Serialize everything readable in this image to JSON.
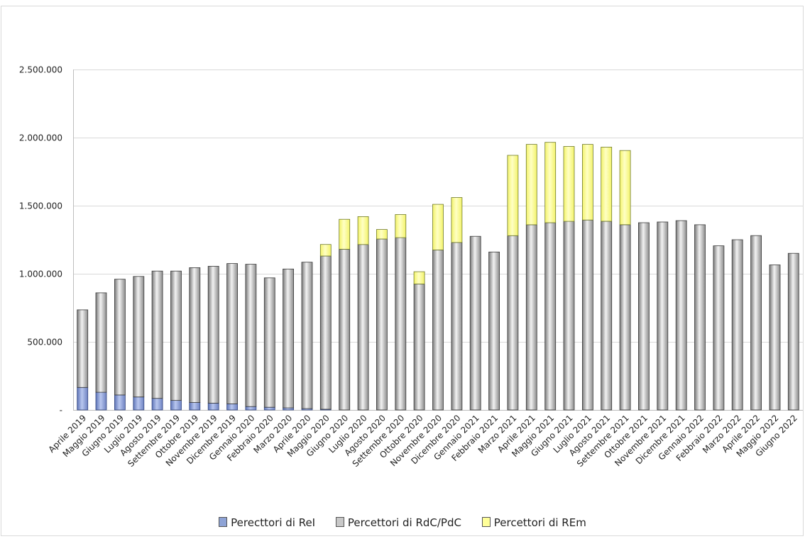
{
  "chart_data": {
    "type": "bar",
    "stacked": true,
    "categories": [
      "Aprile 2019",
      "Maggio 2019",
      "Giugno 2019",
      "Luglio 2019",
      "Agosto 2019",
      "Settembre 2019",
      "Ottobre 2019",
      "Novembre 2019",
      "Dicembre 2019",
      "Gennaio 2020",
      "Febbraio 2020",
      "Marzo 2020",
      "Aprile 2020",
      "Maggio 2020",
      "Giugno 2020",
      "Luglio 2020",
      "Agosto 2020",
      "Settembre 2020",
      "Ottobre 2020",
      "Novembre 2020",
      "Dicembre 2020",
      "Gennaio 2021",
      "Febbraio 2021",
      "Marzo 2021",
      "Aprile  2021",
      "Maggio 2021",
      "Giugno 2021",
      "Luglio 2021",
      "Agosto 2021",
      "Settembre 2021",
      "Ottobre 2021",
      "Novembre 2021",
      "Dicembre 2021",
      "Gennaio 2022",
      "Febbraio 2022",
      "Marzo 2022",
      "Aprile 2022",
      "Maggio 2022",
      "Giugno 2022"
    ],
    "series": [
      {
        "name": "Perecttori di ReI",
        "color": "#8ea3d6",
        "values": [
          165000,
          130000,
          110000,
          95000,
          85000,
          70000,
          55000,
          50000,
          45000,
          25000,
          20000,
          15000,
          10000,
          5000,
          0,
          0,
          0,
          0,
          0,
          0,
          0,
          0,
          0,
          0,
          0,
          0,
          0,
          0,
          0,
          0,
          0,
          0,
          0,
          0,
          0,
          0,
          0,
          0,
          0
        ]
      },
      {
        "name": "Percettori di RdC/PdC",
        "color": "#c8c8c8",
        "values": [
          570000,
          730000,
          850000,
          885000,
          935000,
          950000,
          990000,
          1005000,
          1030000,
          1045000,
          950000,
          1020000,
          1075000,
          1125000,
          1180000,
          1215000,
          1255000,
          1265000,
          925000,
          1175000,
          1230000,
          1275000,
          1160000,
          1280000,
          1360000,
          1375000,
          1385000,
          1395000,
          1385000,
          1360000,
          1375000,
          1380000,
          1390000,
          1360000,
          1205000,
          1250000,
          1280000,
          1065000,
          1150000
        ]
      },
      {
        "name": "Percettori di REm",
        "color": "#ffff99",
        "values": [
          0,
          0,
          0,
          0,
          0,
          0,
          0,
          0,
          0,
          0,
          0,
          0,
          0,
          85000,
          220000,
          205000,
          70000,
          170000,
          90000,
          335000,
          330000,
          0,
          0,
          590000,
          590000,
          590000,
          550000,
          555000,
          545000,
          545000,
          0,
          0,
          0,
          0,
          0,
          0,
          0,
          0,
          0
        ]
      }
    ],
    "ylim": [
      0,
      2500000
    ],
    "yticks": [
      0,
      500000,
      1000000,
      1500000,
      2000000,
      2500000
    ],
    "ytick_labels": [
      "-",
      "500.000",
      "1.000.000",
      "1.500.000",
      "2.000.000",
      "2.500.000"
    ],
    "grid": true,
    "legend_position": "bottom",
    "title": "",
    "xlabel": "",
    "ylabel": ""
  }
}
